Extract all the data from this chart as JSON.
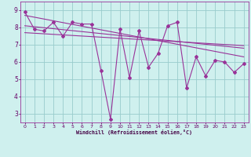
{
  "xlabel": "Windchill (Refroidissement éolien,°C)",
  "background_color": "#cff0ee",
  "grid_color": "#99cccc",
  "line_color": "#993399",
  "xlim": [
    -0.5,
    23.5
  ],
  "ylim": [
    2.5,
    9.5
  ],
  "yticks": [
    3,
    4,
    5,
    6,
    7,
    8,
    9
  ],
  "xticks": [
    0,
    1,
    2,
    3,
    4,
    5,
    6,
    7,
    8,
    9,
    10,
    11,
    12,
    13,
    14,
    15,
    16,
    17,
    18,
    19,
    20,
    21,
    22,
    23
  ],
  "series1_x": [
    0,
    1,
    2,
    3,
    4,
    5,
    6,
    7,
    8,
    9,
    10,
    11,
    12,
    13,
    14,
    15,
    16,
    17,
    18,
    19,
    20,
    21,
    22,
    23
  ],
  "series1_y": [
    8.9,
    7.9,
    7.8,
    8.3,
    7.5,
    8.3,
    8.2,
    8.2,
    5.5,
    2.7,
    7.9,
    5.1,
    7.8,
    5.7,
    6.5,
    8.1,
    8.3,
    4.5,
    6.3,
    5.2,
    6.1,
    6.0,
    5.4,
    5.9
  ],
  "trend1_x": [
    0,
    23
  ],
  "trend1_y": [
    8.7,
    6.3
  ],
  "trend2_x": [
    0,
    23
  ],
  "trend2_y": [
    8.1,
    6.8
  ],
  "trend3_x": [
    0,
    23
  ],
  "trend3_y": [
    7.7,
    6.95
  ]
}
